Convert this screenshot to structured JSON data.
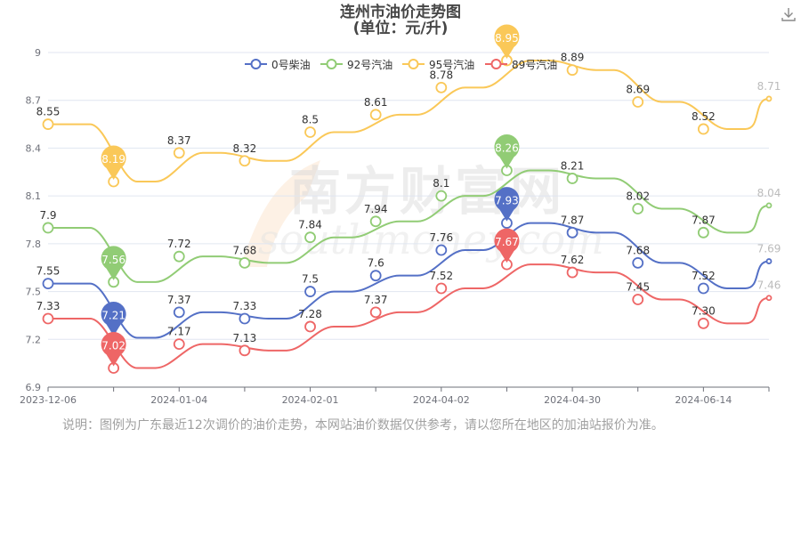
{
  "title_line1": "连州市油价走势图",
  "title_line2": "(单位：元/升)",
  "download_icon": "download-icon",
  "watermark": {
    "cn": "南方财富网",
    "en": "southmoney.com"
  },
  "note": "说明：图例为广东最近12次调价的油价走势，本网站油价数据仅供参考，请以您所在地区的加油站报价为准。",
  "chart_data": {
    "type": "line",
    "x_tick_labels": [
      "2023-12-06",
      "2024-01-04",
      "2024-02-01",
      "2024-04-02",
      "2024-04-30",
      "2024-06-14"
    ],
    "ylim": [
      6.9,
      9
    ],
    "y_ticks": [
      "6.9",
      "7.2",
      "7.5",
      "7.8",
      "8.1",
      "8.4",
      "8.7",
      "9"
    ],
    "grid": true,
    "legend_position": "top",
    "series": [
      {
        "name": "0号柴油",
        "color": "#5470c6",
        "values": [
          7.55,
          7.21,
          7.37,
          7.33,
          7.5,
          7.6,
          7.76,
          7.93,
          7.87,
          7.68,
          7.52,
          7.69
        ],
        "labels": [
          "7.55",
          "7.21",
          "7.37",
          "7.33",
          "7.5",
          "7.6",
          "7.76",
          "7.93",
          "7.87",
          "7.68",
          "7.52",
          "7.69"
        ],
        "min_index": 1,
        "max_index": 7
      },
      {
        "name": "92号汽油",
        "color": "#91cc75",
        "values": [
          7.9,
          7.56,
          7.72,
          7.68,
          7.84,
          7.94,
          8.1,
          8.26,
          8.21,
          8.02,
          7.87,
          8.04
        ],
        "labels": [
          "7.9",
          "7.56",
          "7.72",
          "7.68",
          "7.84",
          "7.94",
          "8.1",
          "8.26",
          "8.21",
          "8.02",
          "7.87",
          "8.04"
        ],
        "min_index": 1,
        "max_index": 7
      },
      {
        "name": "95号汽油",
        "color": "#fac858",
        "values": [
          8.55,
          8.19,
          8.37,
          8.32,
          8.5,
          8.61,
          8.78,
          8.95,
          8.89,
          8.69,
          8.52,
          8.71
        ],
        "labels": [
          "8.55",
          "8.19",
          "8.37",
          "8.32",
          "8.5",
          "8.61",
          "8.78",
          "8.95",
          "8.89",
          "8.69",
          "8.52",
          "8.71"
        ],
        "min_index": 1,
        "max_index": 7
      },
      {
        "name": "89号汽油",
        "color": "#ee6666",
        "values": [
          7.33,
          7.02,
          7.17,
          7.13,
          7.28,
          7.37,
          7.52,
          7.67,
          7.62,
          7.45,
          7.3,
          7.46
        ],
        "labels": [
          "7.33",
          "7.02",
          "7.17",
          "7.13",
          "7.28",
          "7.37",
          "7.52",
          "7.67",
          "7.62",
          "7.45",
          "7.30",
          "7.46"
        ],
        "min_index": 1,
        "max_index": 7
      }
    ]
  }
}
